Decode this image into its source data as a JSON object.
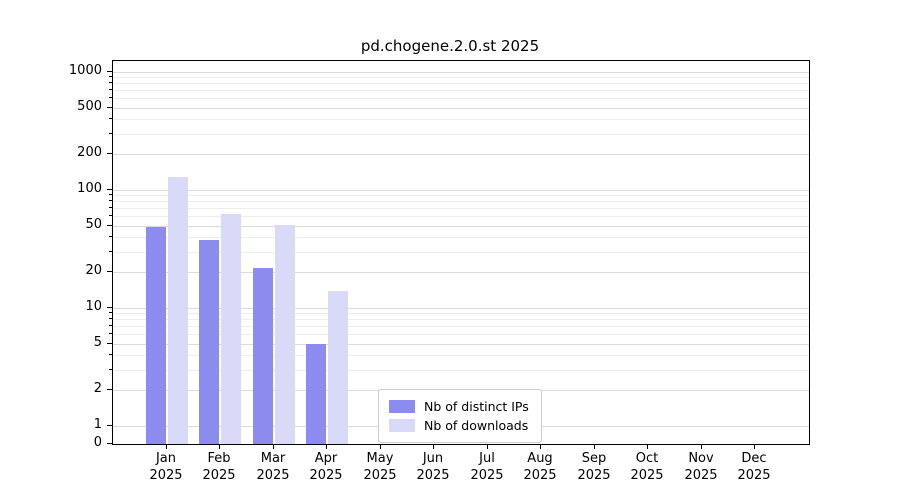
{
  "chart_data": {
    "type": "bar",
    "title": "pd.chogene.2.0.st 2025",
    "categories": [
      "Jan",
      "Feb",
      "Mar",
      "Apr",
      "May",
      "Jun",
      "Jul",
      "Aug",
      "Sep",
      "Oct",
      "Nov",
      "Dec"
    ],
    "xtick_year": "2025",
    "series": [
      {
        "name": "Nb of distinct IPs",
        "color": "#8c8cee",
        "values": [
          49,
          38,
          22,
          5,
          0,
          0,
          0,
          0,
          0,
          0,
          0,
          0
        ]
      },
      {
        "name": "Nb of downloads",
        "color": "#d9d9f8",
        "values": [
          130,
          62,
          51,
          14,
          0,
          0,
          0,
          0,
          0,
          0,
          0,
          0
        ]
      }
    ],
    "yscale": "symlog",
    "yticks": [
      0,
      1,
      2,
      5,
      10,
      20,
      50,
      100,
      200,
      500,
      1000
    ],
    "ylim": [
      0,
      1000
    ],
    "grid": true,
    "legend_position": "inside-bottom-center"
  }
}
